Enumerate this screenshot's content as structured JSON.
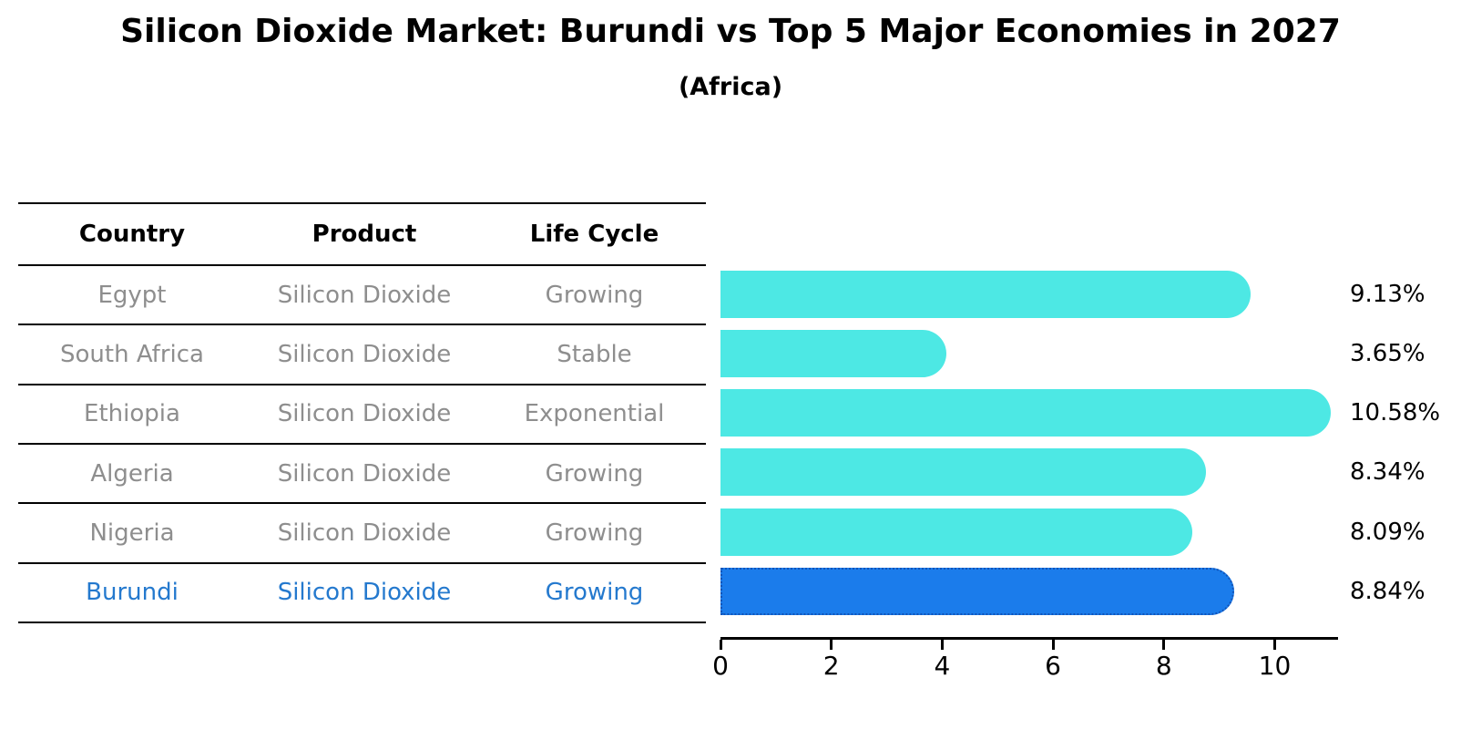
{
  "title": "Silicon Dioxide Market: Burundi vs Top 5 Major Economies in 2027",
  "subtitle": "(Africa)",
  "table": {
    "headers": [
      "Country",
      "Product",
      "Life Cycle"
    ],
    "rows": [
      {
        "country": "Egypt",
        "product": "Silicon Dioxide",
        "life_cycle": "Growing",
        "highlighted": false
      },
      {
        "country": "South Africa",
        "product": "Silicon Dioxide",
        "life_cycle": "Stable",
        "highlighted": false
      },
      {
        "country": "Ethiopia",
        "product": "Silicon Dioxide",
        "life_cycle": "Exponential",
        "highlighted": false
      },
      {
        "country": "Algeria",
        "product": "Silicon Dioxide",
        "life_cycle": "Growing",
        "highlighted": false
      },
      {
        "country": "Nigeria",
        "product": "Silicon Dioxide",
        "life_cycle": "Growing",
        "highlighted": false
      },
      {
        "country": "Burundi",
        "product": "Silicon Dioxide",
        "life_cycle": "Growing",
        "highlighted": true
      }
    ]
  },
  "chart_data": {
    "type": "bar",
    "orientation": "horizontal",
    "categories": [
      "Egypt",
      "South Africa",
      "Ethiopia",
      "Algeria",
      "Nigeria",
      "Burundi"
    ],
    "values": [
      9.13,
      3.65,
      10.58,
      8.34,
      8.09,
      8.84
    ],
    "value_labels": [
      "9.13%",
      "3.65%",
      "10.58%",
      "8.34%",
      "8.09%",
      "8.84%"
    ],
    "xlim": [
      0,
      11.11
    ],
    "x_ticks": [
      "0",
      "2",
      "4",
      "6",
      "8",
      "10"
    ],
    "grid": false,
    "legend": false,
    "bar_color": "#4DE8E4",
    "highlight_index": 5,
    "highlight_color": "#1B7CEB",
    "highlight_border_color": "#1254B8",
    "text_color": "#000000",
    "muted_text_color": "#8e8e8e",
    "highlight_text_color": "#2479ce"
  }
}
